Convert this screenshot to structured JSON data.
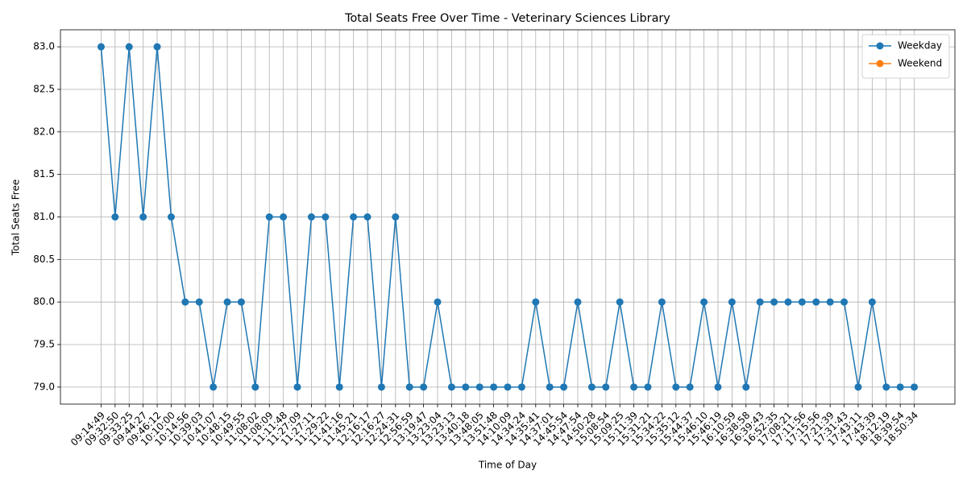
{
  "chart_data": {
    "type": "line",
    "title": "Total Seats Free Over Time - Veterinary Sciences Library",
    "x_label": "Time of Day",
    "y_label": "Total Seats Free",
    "categories": [
      "09:14:49",
      "09:32:50",
      "09:33:25",
      "09:44:27",
      "09:46:12",
      "10:10:00",
      "10:14:56",
      "10:39:03",
      "10:41:07",
      "10:48:15",
      "10:49:55",
      "11:08:02",
      "11:08:09",
      "11:11:48",
      "11:27:09",
      "11:27:11",
      "11:29:22",
      "11:41:16",
      "11:45:21",
      "12:16:17",
      "12:16:27",
      "12:24:31",
      "12:56:59",
      "13:19:47",
      "13:23:04",
      "13:23:13",
      "13:40:18",
      "13:48:05",
      "13:51:48",
      "14:10:09",
      "14:34:24",
      "14:35:41",
      "14:37:01",
      "14:45:54",
      "14:47:54",
      "14:50:28",
      "15:08:54",
      "15:09:25",
      "15:11:39",
      "15:31:21",
      "15:34:22",
      "15:35:12",
      "15:44:37",
      "15:46:10",
      "15:46:19",
      "16:10:59",
      "16:38:58",
      "16:39:43",
      "16:52:35",
      "17:08:21",
      "17:11:56",
      "17:15:56",
      "17:21:39",
      "17:31:43",
      "17:43:11",
      "17:43:39",
      "18:12:19",
      "18:39:54",
      "18:50:34"
    ],
    "series": [
      {
        "name": "Weekday",
        "color": "#1f77b4",
        "values": [
          83,
          81,
          83,
          81,
          83,
          81,
          80,
          80,
          79,
          80,
          80,
          79,
          81,
          81,
          79,
          81,
          81,
          79,
          81,
          81,
          79,
          81,
          79,
          79,
          80,
          79,
          79,
          79,
          79,
          79,
          79,
          80,
          79,
          79,
          80,
          79,
          79,
          80,
          79,
          79,
          80,
          79,
          79,
          80,
          79,
          80,
          79,
          80,
          80,
          80,
          80,
          80,
          80,
          80,
          79,
          80,
          79,
          79,
          79
        ]
      },
      {
        "name": "Weekend",
        "color": "#ff7f0e",
        "values": [
          null,
          null,
          null,
          null,
          null,
          null,
          null,
          null,
          null,
          null,
          null,
          null,
          null,
          null,
          null,
          null,
          null,
          null,
          null,
          null,
          null,
          null,
          null,
          null,
          null,
          null,
          null,
          null,
          null,
          null,
          null,
          null,
          null,
          null,
          null,
          null,
          null,
          null,
          null,
          null,
          null,
          null,
          null,
          null,
          null,
          null,
          null,
          null,
          null,
          null,
          null,
          null,
          null,
          null,
          null,
          null,
          null,
          null,
          null
        ]
      }
    ],
    "ylim": [
      78.8,
      83.2
    ],
    "yticks": [
      {
        "value": 79,
        "label": "79.0"
      },
      {
        "value": 79.5,
        "label": "79.5"
      },
      {
        "value": 80,
        "label": "80.0"
      },
      {
        "value": 80.5,
        "label": "80.5"
      },
      {
        "value": 81,
        "label": "81.0"
      },
      {
        "value": 81.5,
        "label": "81.5"
      },
      {
        "value": 82,
        "label": "82.0"
      },
      {
        "value": 82.5,
        "label": "82.5"
      },
      {
        "value": 83,
        "label": "83.0"
      }
    ],
    "grid": true,
    "legend": "upper right"
  }
}
